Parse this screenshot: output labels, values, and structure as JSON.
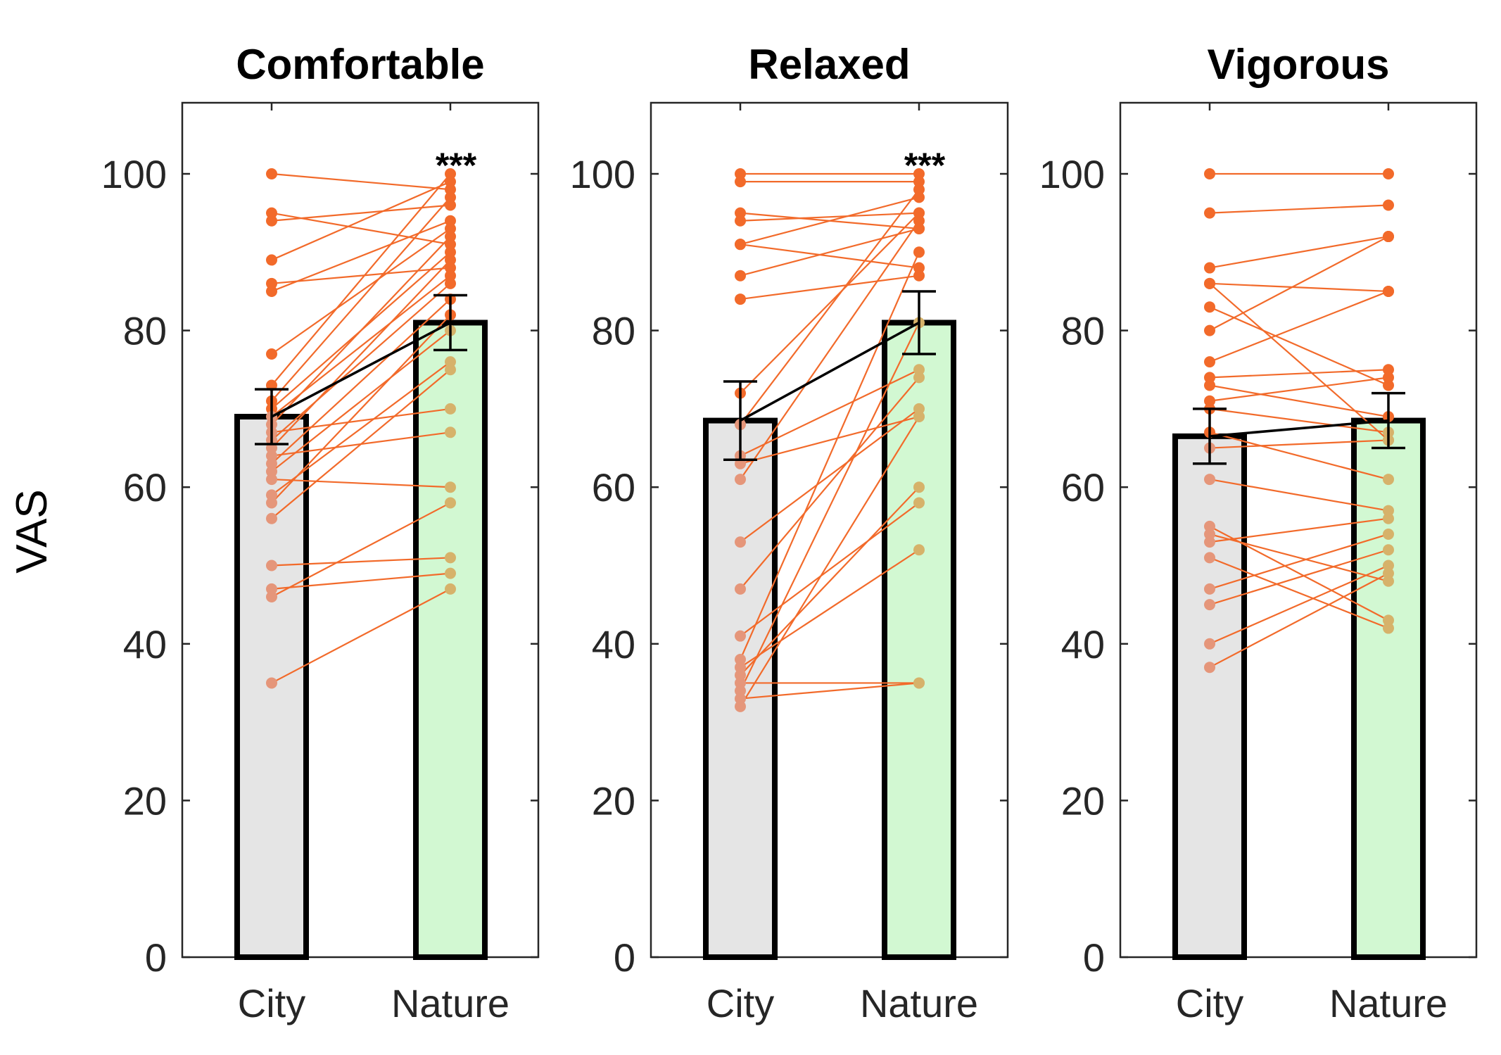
{
  "figure": {
    "ylabel": "VAS",
    "colors": {
      "city_bar": "#e5e5e5",
      "nature_bar": "#d2f8d2",
      "lines": "#f26a2a",
      "points_top": "#f26a2a",
      "points_city_low": "#e5967a",
      "points_nature_low": "#d6b26a",
      "mean_line": "#000000"
    }
  },
  "chart_data": [
    {
      "type": "bar",
      "title": "Comfortable",
      "categories": [
        "City",
        "Nature"
      ],
      "means": [
        69,
        81
      ],
      "errors": [
        3.5,
        3.5
      ],
      "significance": "***",
      "ylabel": "VAS",
      "ylim": [
        0,
        109
      ],
      "yticks": [
        0,
        20,
        40,
        60,
        80,
        100
      ],
      "pairs": [
        [
          100,
          98
        ],
        [
          95,
          91
        ],
        [
          94,
          96
        ],
        [
          89,
          99
        ],
        [
          86,
          88
        ],
        [
          85,
          94
        ],
        [
          77,
          93
        ],
        [
          73,
          100
        ],
        [
          71,
          97
        ],
        [
          70,
          90
        ],
        [
          69,
          87
        ],
        [
          68,
          92
        ],
        [
          66,
          86
        ],
        [
          65,
          89
        ],
        [
          63,
          84
        ],
        [
          62,
          80
        ],
        [
          61,
          60
        ],
        [
          59,
          76
        ],
        [
          58,
          82
        ],
        [
          56,
          75
        ],
        [
          50,
          51
        ],
        [
          47,
          49
        ],
        [
          46,
          58
        ],
        [
          35,
          47
        ],
        [
          67,
          70
        ],
        [
          64,
          67
        ]
      ]
    },
    {
      "type": "bar",
      "title": "Relaxed",
      "categories": [
        "City",
        "Nature"
      ],
      "means": [
        68.5,
        81
      ],
      "errors": [
        5,
        4
      ],
      "significance": "***",
      "ylabel": "",
      "ylim": [
        0,
        109
      ],
      "yticks": [
        0,
        20,
        40,
        60,
        80,
        100
      ],
      "pairs": [
        [
          100,
          100
        ],
        [
          99,
          99
        ],
        [
          95,
          93
        ],
        [
          94,
          95
        ],
        [
          91,
          97
        ],
        [
          91,
          88
        ],
        [
          87,
          93
        ],
        [
          84,
          87
        ],
        [
          72,
          95
        ],
        [
          68,
          98
        ],
        [
          64,
          75
        ],
        [
          63,
          69
        ],
        [
          61,
          94
        ],
        [
          53,
          70
        ],
        [
          47,
          74
        ],
        [
          41,
          58
        ],
        [
          38,
          90
        ],
        [
          37,
          52
        ],
        [
          36,
          60
        ],
        [
          35,
          35
        ],
        [
          33,
          35
        ],
        [
          32,
          69
        ],
        [
          34,
          81
        ]
      ]
    },
    {
      "type": "bar",
      "title": "Vigorous",
      "categories": [
        "City",
        "Nature"
      ],
      "means": [
        66.5,
        68.5
      ],
      "errors": [
        3.5,
        3.5
      ],
      "significance": "",
      "ylabel": "",
      "ylim": [
        0,
        109
      ],
      "yticks": [
        0,
        20,
        40,
        60,
        80,
        100
      ],
      "pairs": [
        [
          100,
          100
        ],
        [
          95,
          96
        ],
        [
          88,
          92
        ],
        [
          86,
          85
        ],
        [
          86,
          66
        ],
        [
          83,
          73
        ],
        [
          80,
          92
        ],
        [
          76,
          85
        ],
        [
          74,
          75
        ],
        [
          73,
          69
        ],
        [
          71,
          74
        ],
        [
          70,
          67
        ],
        [
          67,
          61
        ],
        [
          65,
          66
        ],
        [
          61,
          57
        ],
        [
          55,
          43
        ],
        [
          54,
          48
        ],
        [
          53,
          56
        ],
        [
          51,
          42
        ],
        [
          47,
          54
        ],
        [
          45,
          52
        ],
        [
          40,
          50
        ],
        [
          37,
          49
        ]
      ]
    }
  ]
}
